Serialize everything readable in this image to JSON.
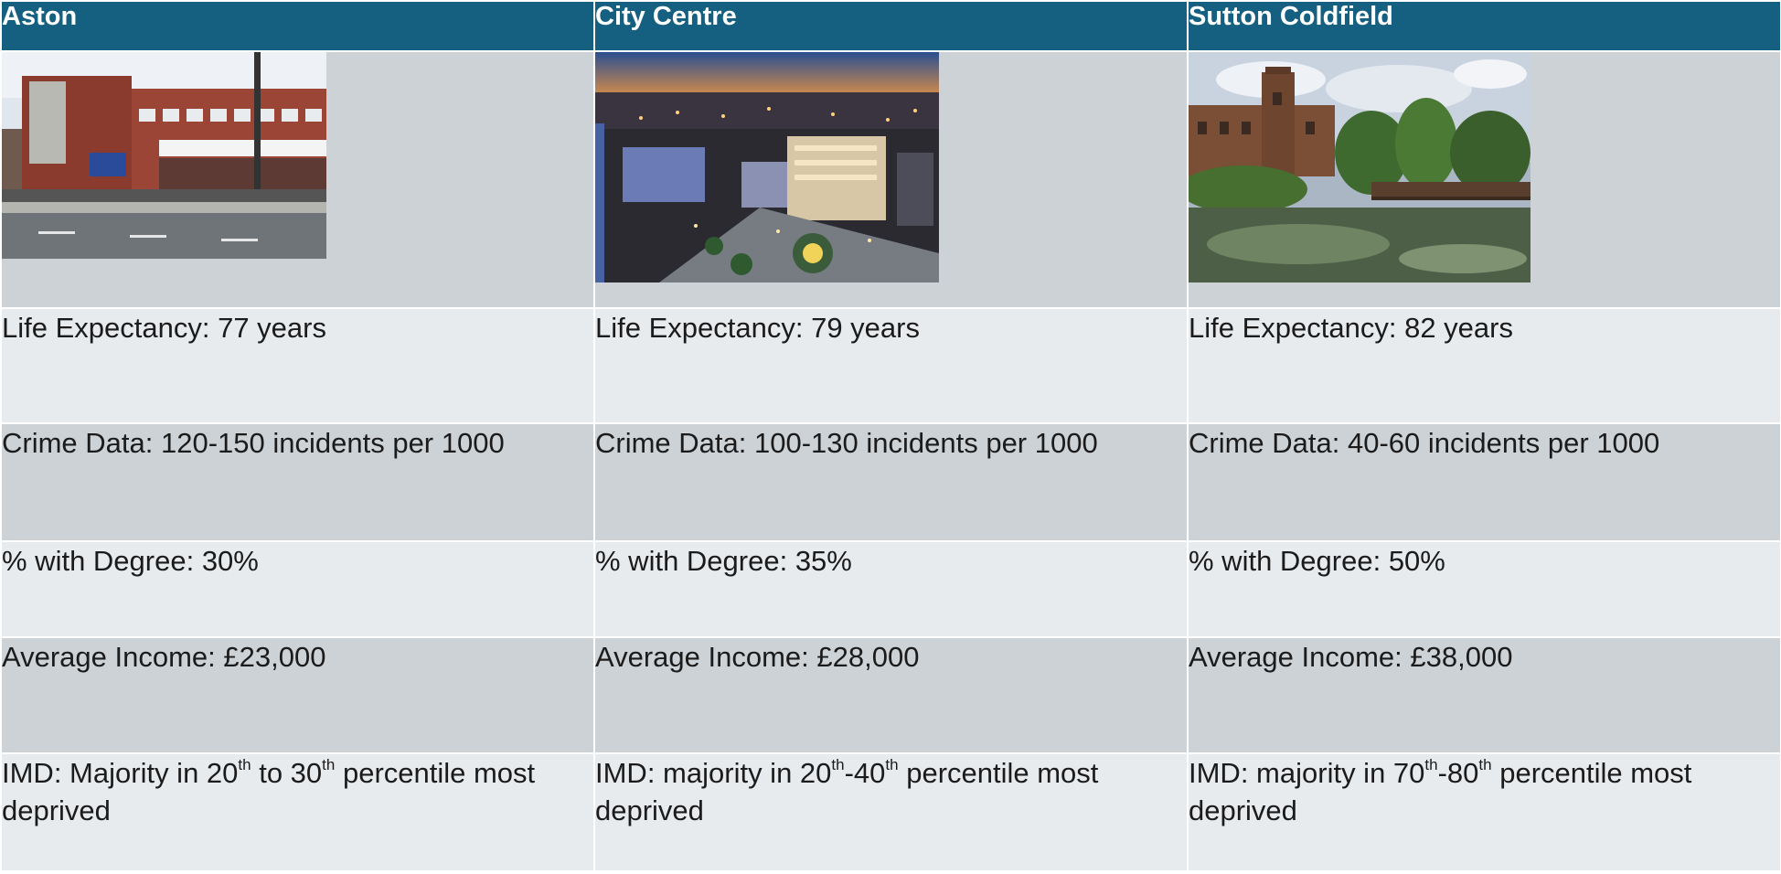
{
  "columns": [
    {
      "name": "Aston",
      "photo_icon": "aston-street-photo",
      "life_expectancy": "Life Expectancy: 77 years",
      "crime": "Crime Data: 120-150 incidents per 1000",
      "degree": "% with Degree: 30%",
      "income": "Average Income: £23,000",
      "imd": {
        "lead": "IMD: Majority in 20",
        "sup1": "th",
        "mid": " to 30",
        "sup2": "th",
        "tail": " percentile most deprived"
      }
    },
    {
      "name": "City Centre",
      "photo_icon": "city-centre-night-photo",
      "life_expectancy": "Life Expectancy: 79 years",
      "crime": "Crime Data: 100-130 incidents per 1000",
      "degree": "% with Degree: 35%",
      "income": "Average Income: £28,000",
      "imd": {
        "lead": "IMD: majority in 20",
        "sup1": "th",
        "mid": "-40",
        "sup2": "th",
        "tail": " percentile most deprived"
      }
    },
    {
      "name": "Sutton Coldfield",
      "photo_icon": "sutton-coldfield-park-photo",
      "life_expectancy": "Life Expectancy: 82 years",
      "crime": "Crime Data: 40-60 incidents per 1000",
      "degree": "% with Degree: 50%",
      "income": "Average Income: £38,000",
      "imd": {
        "lead": "IMD: majority in 70",
        "sup1": "th",
        "mid": "-80",
        "sup2": "th",
        "tail": " percentile most deprived"
      }
    }
  ],
  "colors": {
    "header_bg": "#155f81",
    "row_light": "#e8ebee",
    "row_dark": "#cdd2d6"
  }
}
